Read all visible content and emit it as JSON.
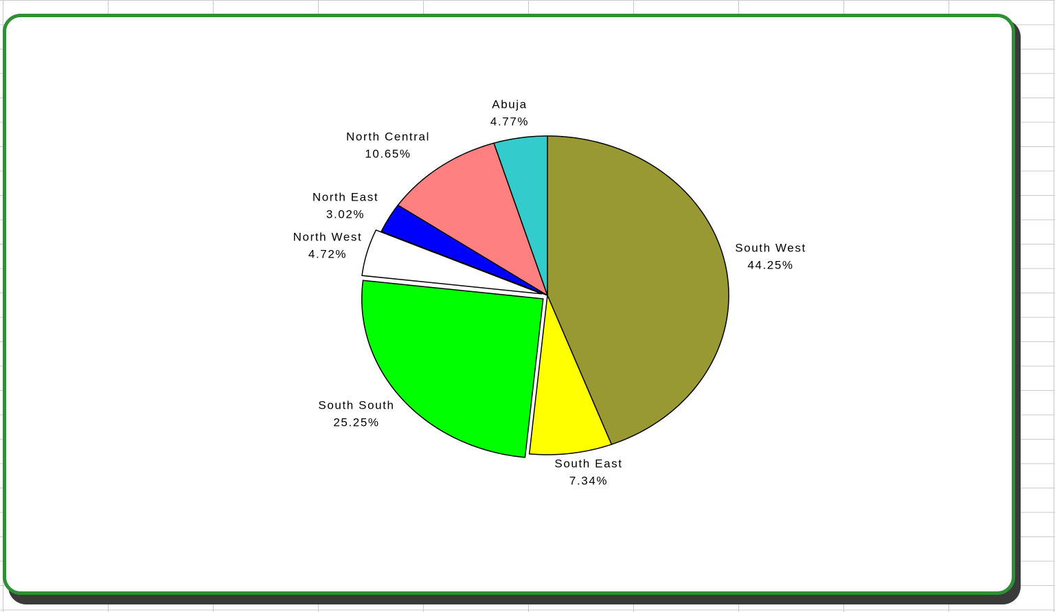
{
  "chart_data": {
    "type": "pie",
    "title": "",
    "slices": [
      {
        "label": "South West",
        "value": 44.25,
        "value_label": "44.25%",
        "color": "#999933"
      },
      {
        "label": "South East",
        "value": 7.34,
        "value_label": "7.34%",
        "color": "#FFFF00"
      },
      {
        "label": "South South",
        "value": 25.25,
        "value_label": "25.25%",
        "color": "#00FF00",
        "exploded": true
      },
      {
        "label": "North West",
        "value": 4.72,
        "value_label": "4.72%",
        "color": "#FFFFFF",
        "exploded": true
      },
      {
        "label": "North East",
        "value": 3.02,
        "value_label": "3.02%",
        "color": "#0000FF"
      },
      {
        "label": "North Central",
        "value": 10.65,
        "value_label": "10.65%",
        "color": "#FF8080"
      },
      {
        "label": "Abuja",
        "value": 4.77,
        "value_label": "4.77%",
        "color": "#33CCCC"
      }
    ],
    "start_angle": "12 o'clock",
    "direction": "clockwise",
    "legend": "none",
    "data_labels": "category and percent"
  },
  "colors": {
    "frame_border": "#2f8f35",
    "background": "#ffffff",
    "gridlines": "#c8c8c8"
  }
}
